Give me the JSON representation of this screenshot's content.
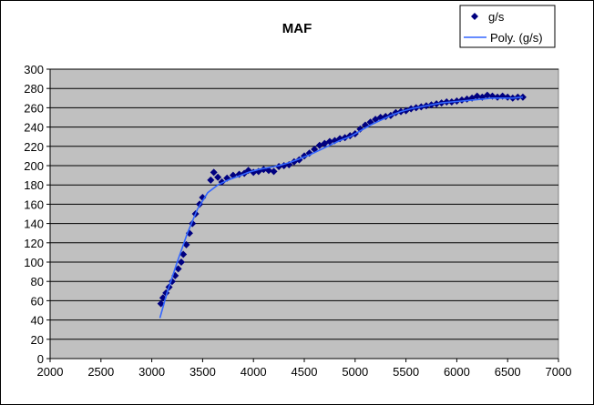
{
  "chart_data": {
    "type": "scatter",
    "title": "MAF",
    "xlabel": "",
    "ylabel": "",
    "xlim": [
      2000,
      7000
    ],
    "ylim": [
      0,
      300
    ],
    "xticks": [
      2000,
      2500,
      3000,
      3500,
      4000,
      4500,
      5000,
      5500,
      6000,
      6500,
      7000
    ],
    "yticks": [
      0,
      20,
      40,
      60,
      80,
      100,
      120,
      140,
      160,
      180,
      200,
      220,
      240,
      260,
      280,
      300
    ],
    "grid": "horizontal",
    "legend_position": "top-right",
    "colors": {
      "plot_background": "#c0c0c0",
      "marker": "#000080",
      "trendline": "#3366ff",
      "grid": "#000000"
    },
    "series": [
      {
        "name": "g/s",
        "marker": "diamond",
        "x": [
          3090,
          3110,
          3140,
          3170,
          3200,
          3230,
          3260,
          3290,
          3310,
          3340,
          3370,
          3400,
          3430,
          3470,
          3500,
          3580,
          3610,
          3650,
          3690,
          3740,
          3800,
          3860,
          3910,
          3950,
          4000,
          4050,
          4100,
          4150,
          4200,
          4250,
          4300,
          4350,
          4400,
          4450,
          4500,
          4550,
          4600,
          4650,
          4700,
          4750,
          4800,
          4850,
          4900,
          4950,
          5000,
          5050,
          5100,
          5150,
          5200,
          5250,
          5300,
          5350,
          5400,
          5450,
          5500,
          5550,
          5600,
          5650,
          5700,
          5750,
          5800,
          5850,
          5900,
          5950,
          6000,
          6050,
          6100,
          6150,
          6200,
          6250,
          6300,
          6350,
          6400,
          6450,
          6500,
          6550,
          6600,
          6650
        ],
        "y": [
          57,
          63,
          68,
          74,
          80,
          86,
          93,
          100,
          108,
          118,
          130,
          140,
          150,
          160,
          167,
          185,
          193,
          188,
          183,
          187,
          190,
          191,
          192,
          195,
          193,
          194,
          196,
          195,
          194,
          199,
          200,
          201,
          204,
          206,
          210,
          213,
          217,
          221,
          223,
          225,
          226,
          228,
          229,
          231,
          233,
          238,
          242,
          245,
          248,
          250,
          251,
          252,
          255,
          256,
          257,
          259,
          260,
          261,
          262,
          263,
          264,
          265,
          266,
          266,
          267,
          268,
          269,
          270,
          272,
          271,
          273,
          272,
          271,
          272,
          271,
          270,
          271,
          271
        ]
      },
      {
        "name": "Poly. (g/s)",
        "marker": "line",
        "x": [
          3080,
          3150,
          3250,
          3350,
          3450,
          3550,
          3650,
          3750,
          3850,
          3950,
          4050,
          4150,
          4250,
          4350,
          4450,
          4550,
          4650,
          4750,
          4850,
          4950,
          5050,
          5150,
          5250,
          5350,
          5450,
          5550,
          5650,
          5750,
          5850,
          5950,
          6050,
          6150,
          6250,
          6350,
          6450,
          6550,
          6650
        ],
        "y": [
          42,
          68,
          100,
          130,
          155,
          172,
          180,
          185,
          189,
          193,
          196,
          198,
          200,
          203,
          207,
          211,
          216,
          221,
          226,
          230,
          236,
          242,
          247,
          252,
          256,
          259,
          261,
          263,
          265,
          266,
          267,
          268,
          269,
          270,
          270,
          270,
          271
        ]
      }
    ]
  }
}
